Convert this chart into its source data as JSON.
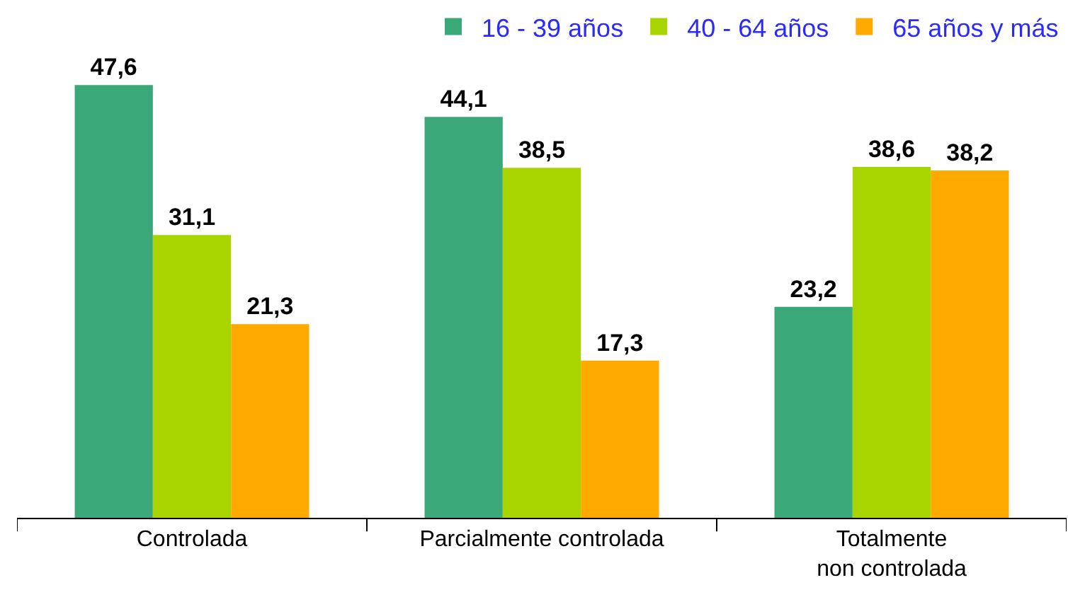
{
  "chart_data": {
    "type": "bar",
    "categories": [
      "Controlada",
      "Parcialmente controlada",
      "Totalmente\nnon controlada"
    ],
    "series": [
      {
        "name": "16 - 39 años",
        "color": "#3ba87a",
        "values": [
          47.6,
          44.1,
          23.2
        ],
        "value_labels": [
          "47,6",
          "44,1",
          "23,2"
        ]
      },
      {
        "name": "40 - 64 años",
        "color": "#a8d400",
        "values": [
          31.1,
          38.5,
          38.6
        ],
        "value_labels": [
          "31,1",
          "38,5",
          "38,6"
        ]
      },
      {
        "name": "65 años y más",
        "color": "#ffaa00",
        "values": [
          21.3,
          17.3,
          38.2
        ],
        "value_labels": [
          "21,3",
          "17,3",
          "38,2"
        ]
      }
    ],
    "legend": "top right",
    "grid": false,
    "tick_labels": "x"
  }
}
